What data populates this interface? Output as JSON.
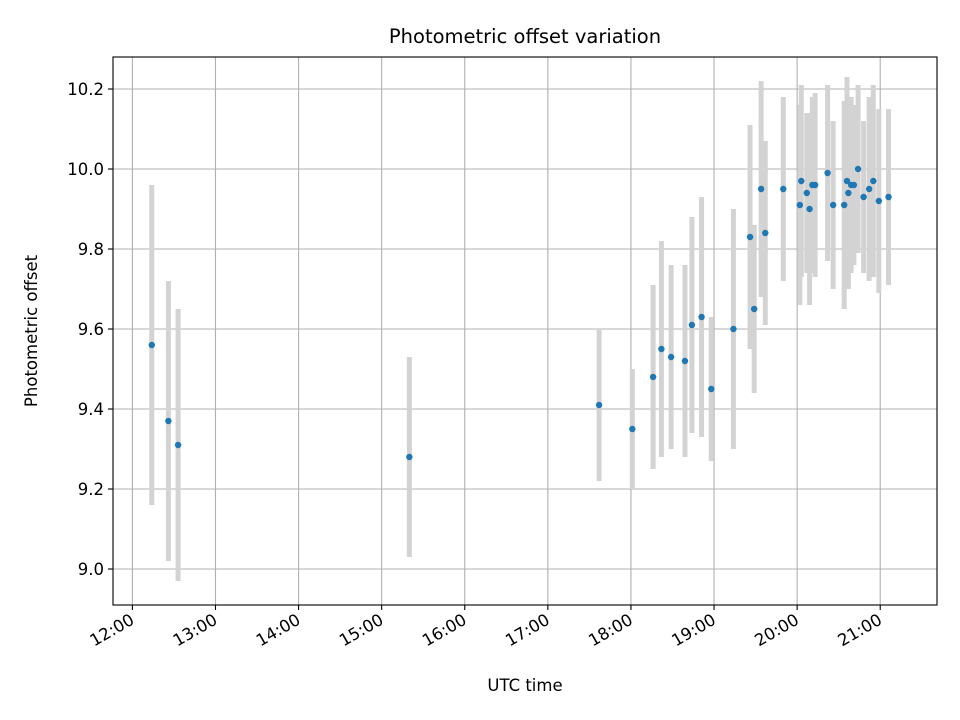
{
  "chart_data": {
    "type": "scatter",
    "title": "Photometric offset variation",
    "xlabel": "UTC time",
    "ylabel": "Photometric offset",
    "x_ticks": [
      "12:00",
      "13:00",
      "14:00",
      "15:00",
      "16:00",
      "17:00",
      "18:00",
      "19:00",
      "20:00",
      "21:00"
    ],
    "y_ticks": [
      "9.0",
      "9.2",
      "9.4",
      "9.6",
      "9.8",
      "10.0",
      "10.2"
    ],
    "xlim": [
      "11:46",
      "21:41"
    ],
    "ylim": [
      8.91,
      10.28
    ],
    "grid": true,
    "colors": {
      "point": "#1f77b4",
      "errorbar": "#d3d3d3",
      "grid": "#b0b0b0"
    },
    "series": [
      {
        "x": [
          "12:14",
          "12:26",
          "12:33",
          "15:20",
          "17:37",
          "18:01",
          "18:16",
          "18:22",
          "18:29",
          "18:39",
          "18:44",
          "18:51",
          "18:58",
          "19:14",
          "19:26",
          "19:29",
          "19:34",
          "19:37",
          "19:50",
          "20:02",
          "20:03",
          "20:07",
          "20:09",
          "20:11",
          "20:13",
          "20:22",
          "20:26",
          "20:34",
          "20:36",
          "20:37",
          "20:39",
          "20:41",
          "20:44",
          "20:48",
          "20:52",
          "20:55",
          "20:59",
          "21:06"
        ],
        "y": [
          9.56,
          9.37,
          9.31,
          9.28,
          9.41,
          9.35,
          9.48,
          9.55,
          9.53,
          9.52,
          9.61,
          9.63,
          9.45,
          9.6,
          9.83,
          9.65,
          9.95,
          9.84,
          9.95,
          9.91,
          9.97,
          9.94,
          9.9,
          9.96,
          9.96,
          9.99,
          9.91,
          9.91,
          9.97,
          9.94,
          9.96,
          9.96,
          10.0,
          9.93,
          9.95,
          9.97,
          9.92,
          9.93
        ],
        "yerr": [
          0.4,
          0.35,
          0.34,
          0.25,
          0.19,
          0.15,
          0.23,
          0.27,
          0.23,
          0.24,
          0.27,
          0.3,
          0.18,
          0.3,
          0.28,
          0.21,
          0.27,
          0.23,
          0.23,
          0.25,
          0.24,
          0.2,
          0.24,
          0.22,
          0.23,
          0.22,
          0.21,
          0.26,
          0.26,
          0.24,
          0.22,
          0.2,
          0.21,
          0.19,
          0.23,
          0.24,
          0.23,
          0.22
        ]
      }
    ]
  }
}
